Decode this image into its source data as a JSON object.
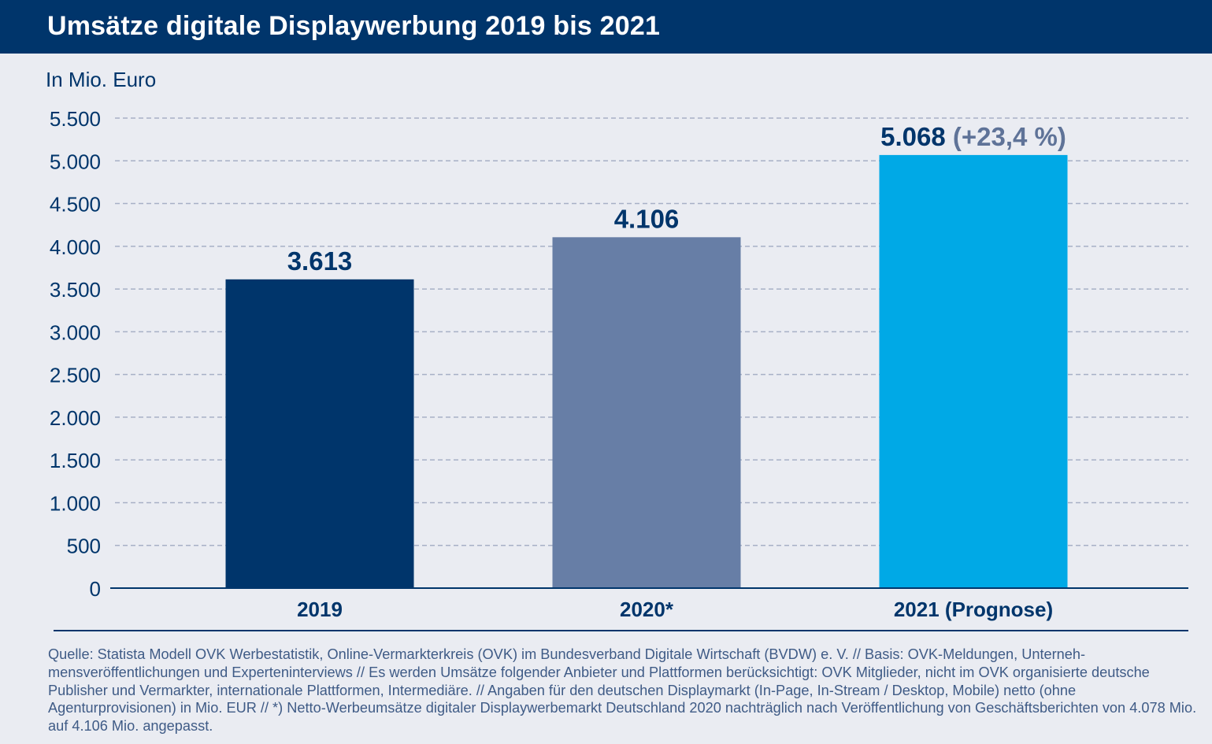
{
  "header": {
    "title": "Umsätze digitale Displaywerbung 2019 bis 2021"
  },
  "chart_data": {
    "type": "bar",
    "title": "Umsätze digitale Displaywerbung 2019 bis 2021",
    "ylabel": "In Mio. Euro",
    "xlabel": "",
    "ylim": [
      0,
      5500
    ],
    "yticks": [
      0,
      500,
      1000,
      1500,
      2000,
      2500,
      3000,
      3500,
      4000,
      4500,
      5000,
      5500
    ],
    "ytick_labels": [
      "0",
      "500",
      "1.000",
      "1.500",
      "2.000",
      "2.500",
      "3.000",
      "3.500",
      "4.000",
      "4.500",
      "5.000",
      "5.500"
    ],
    "categories": [
      "2019",
      "2020*",
      "2021 (Prognose)"
    ],
    "values": [
      3613,
      4106,
      5068
    ],
    "data_labels": [
      "3.613",
      "4.106",
      "5.068"
    ],
    "data_label_suffixes": [
      "",
      "",
      " (+23,4 %)"
    ],
    "bar_colors": [
      "#00356b",
      "#677ea6",
      "#00a9e6"
    ],
    "grid": true,
    "grid_style": "dashed"
  },
  "colors": {
    "navy": "#00356b",
    "gridline": "#a7b0c6",
    "suffix": "#5f7398",
    "background": "#eaecf2"
  },
  "source": "Quelle: Statista Modell OVK Werbestatistik, Online-Vermarkterkreis (OVK) im Bundesverband Digitale Wirtschaft (BVDW) e. V. // Basis: OVK-Meldungen, Unterneh­mensveröffentlichungen und Experteninterviews // Es werden Umsätze folgender Anbieter und Plattformen berücksichtigt: OVK Mitglieder, nicht im OVK organisierte deutsche Publisher und Vermarkter, internationale Plattformen, Intermediäre. // Angaben für den deutschen Displaymarkt (In-Page, In-Stream / Desktop, Mobile) netto (ohne Agenturprovisionen) in Mio. EUR // *) Netto-Werbeumsätze digitaler Displaywerbemarkt Deutschland 2020 nachträglich nach Veröffentlichung von Geschäftsberichten von 4.078 Mio. auf 4.106 Mio. angepasst."
}
